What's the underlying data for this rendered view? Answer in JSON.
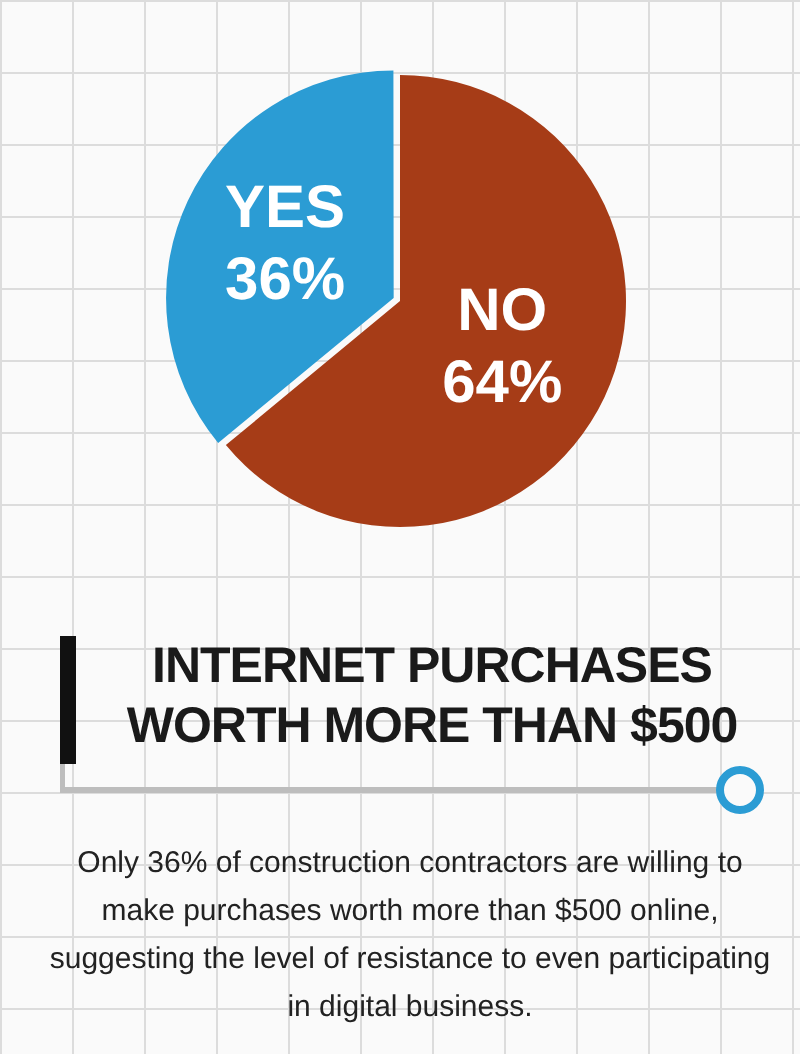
{
  "chart_data": {
    "type": "pie",
    "title": "INTERNET PURCHASES WORTH MORE THAN $500",
    "categories": [
      "YES",
      "NO"
    ],
    "values": [
      36,
      64
    ],
    "colors": [
      "#2b9cd4",
      "#a63c17"
    ],
    "value_labels": [
      "36%",
      "64%"
    ],
    "legend": false,
    "annotations": [
      "Only 36% of construction contractors are willing to make purchases worth more than $500 online, suggesting the level of resistance to even participating in digital business."
    ]
  }
}
